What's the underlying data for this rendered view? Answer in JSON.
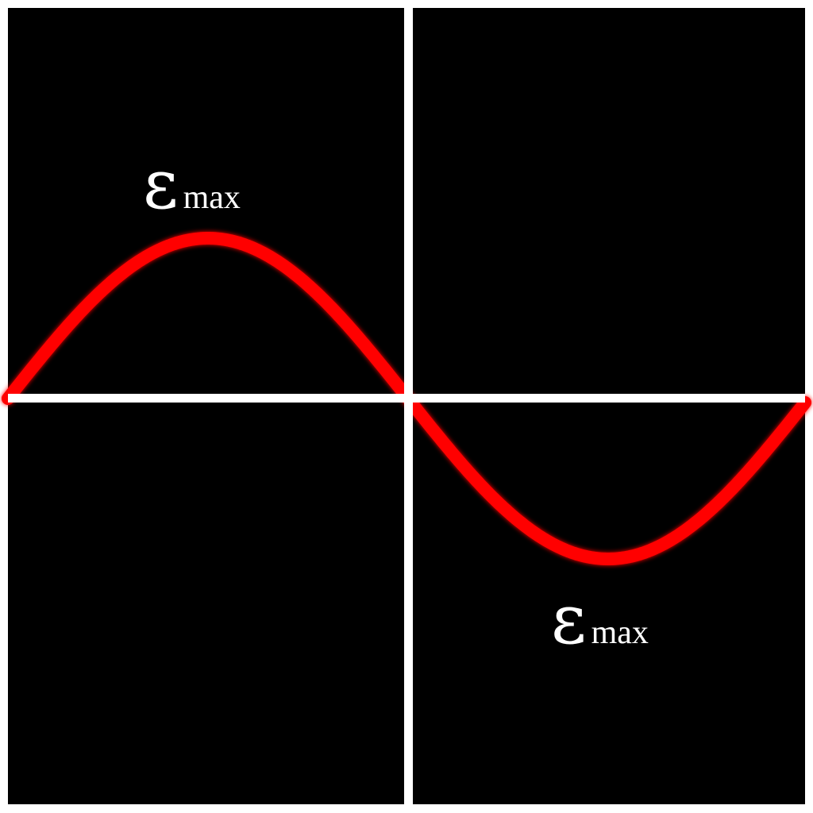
{
  "diagram": {
    "background_color": "#000000",
    "axis_color": "#ffffff",
    "wave_color": "#ff0000",
    "wave_shape": "sine",
    "cycles_shown": 1,
    "labels": {
      "peak": {
        "symbol": "ε",
        "subscript": "max"
      },
      "trough": {
        "symbol": "ε",
        "subscript": "max"
      }
    }
  }
}
